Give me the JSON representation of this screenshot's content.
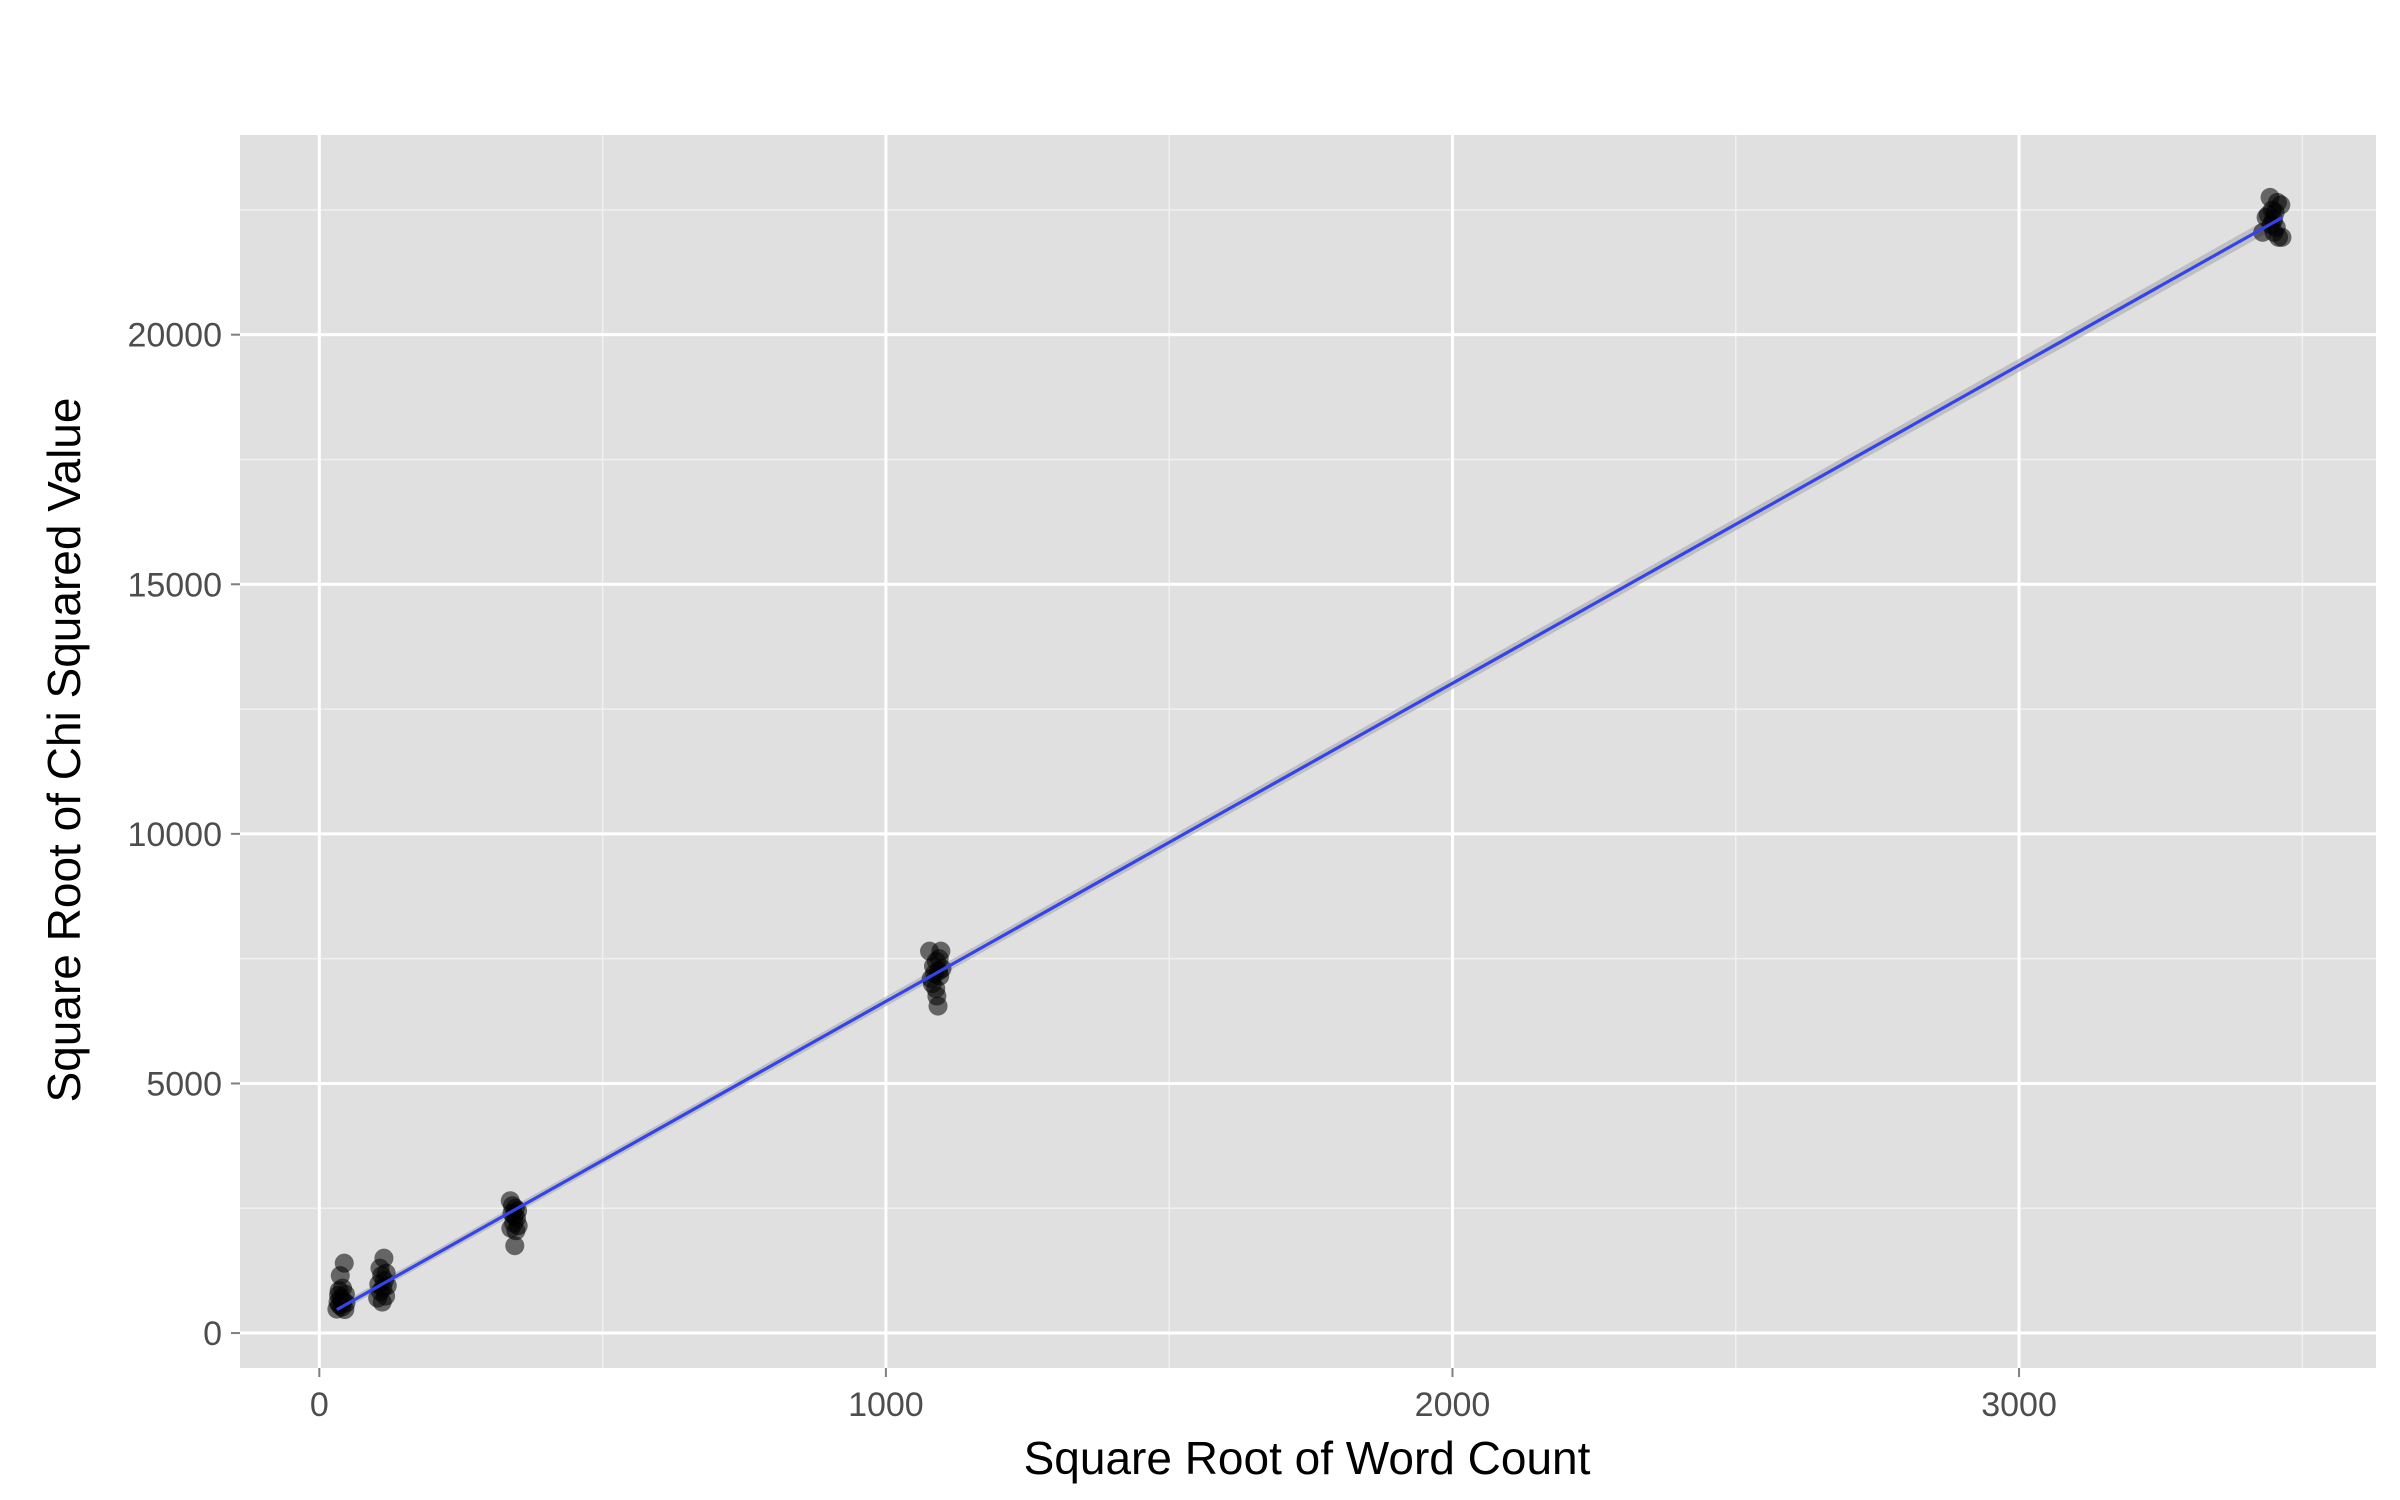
{
  "chart_data": {
    "type": "scatter",
    "title": "",
    "xlabel": "Square Root of Word Count",
    "ylabel": "Square Root of Chi Squared Value",
    "xlim": [
      -140,
      3630
    ],
    "ylim": [
      -700,
      24000
    ],
    "x_ticks": [
      0,
      1000,
      2000,
      3000
    ],
    "x_tick_labels": [
      "0",
      "1000",
      "2000",
      "3000"
    ],
    "y_ticks": [
      0,
      5000,
      10000,
      15000,
      20000
    ],
    "y_tick_labels": [
      "0",
      "5000",
      "10000",
      "15000",
      "20000"
    ],
    "grid": true,
    "legend": "none",
    "colors": {
      "panel_background": "#e0e0e0",
      "grid_major": "#ffffff",
      "grid_minor": "#f0f0f0",
      "points": "#000000",
      "fit_line": "#3344ee",
      "confidence_band": "#a8a8a8"
    },
    "series": [
      {
        "type": "scatter",
        "points": [
          {
            "x": 31,
            "y": 480
          },
          {
            "x": 33,
            "y": 620
          },
          {
            "x": 34,
            "y": 760
          },
          {
            "x": 35,
            "y": 850
          },
          {
            "x": 36,
            "y": 560
          },
          {
            "x": 37,
            "y": 1150
          },
          {
            "x": 38,
            "y": 700
          },
          {
            "x": 40,
            "y": 520
          },
          {
            "x": 41,
            "y": 900
          },
          {
            "x": 42,
            "y": 640
          },
          {
            "x": 44,
            "y": 1400
          },
          {
            "x": 45,
            "y": 470
          },
          {
            "x": 46,
            "y": 780
          },
          {
            "x": 47,
            "y": 600
          },
          {
            "x": 103,
            "y": 700
          },
          {
            "x": 105,
            "y": 980
          },
          {
            "x": 107,
            "y": 1300
          },
          {
            "x": 108,
            "y": 830
          },
          {
            "x": 110,
            "y": 1150
          },
          {
            "x": 111,
            "y": 620
          },
          {
            "x": 112,
            "y": 900
          },
          {
            "x": 114,
            "y": 1500
          },
          {
            "x": 115,
            "y": 1050
          },
          {
            "x": 117,
            "y": 740
          },
          {
            "x": 118,
            "y": 1200
          },
          {
            "x": 120,
            "y": 950
          },
          {
            "x": 337,
            "y": 2650
          },
          {
            "x": 338,
            "y": 2100
          },
          {
            "x": 340,
            "y": 2400
          },
          {
            "x": 341,
            "y": 2550
          },
          {
            "x": 343,
            "y": 2200
          },
          {
            "x": 344,
            "y": 2350
          },
          {
            "x": 345,
            "y": 1750
          },
          {
            "x": 346,
            "y": 2500
          },
          {
            "x": 347,
            "y": 2050
          },
          {
            "x": 348,
            "y": 2300
          },
          {
            "x": 350,
            "y": 2450
          },
          {
            "x": 351,
            "y": 2150
          },
          {
            "x": 1077,
            "y": 7650
          },
          {
            "x": 1080,
            "y": 7100
          },
          {
            "x": 1082,
            "y": 7000
          },
          {
            "x": 1084,
            "y": 7350
          },
          {
            "x": 1086,
            "y": 7200
          },
          {
            "x": 1088,
            "y": 6900
          },
          {
            "x": 1089,
            "y": 7450
          },
          {
            "x": 1090,
            "y": 6750
          },
          {
            "x": 1092,
            "y": 6550
          },
          {
            "x": 1093,
            "y": 7250
          },
          {
            "x": 1094,
            "y": 7500
          },
          {
            "x": 1095,
            "y": 7150
          },
          {
            "x": 1097,
            "y": 7650
          },
          {
            "x": 1099,
            "y": 7300
          },
          {
            "x": 3430,
            "y": 22050
          },
          {
            "x": 3436,
            "y": 22350
          },
          {
            "x": 3440,
            "y": 22400
          },
          {
            "x": 3443,
            "y": 22750
          },
          {
            "x": 3445,
            "y": 22200
          },
          {
            "x": 3447,
            "y": 22500
          },
          {
            "x": 3449,
            "y": 22300
          },
          {
            "x": 3450,
            "y": 22050
          },
          {
            "x": 3452,
            "y": 22450
          },
          {
            "x": 3454,
            "y": 22150
          },
          {
            "x": 3456,
            "y": 22650
          },
          {
            "x": 3458,
            "y": 21950
          },
          {
            "x": 3462,
            "y": 22600
          },
          {
            "x": 3464,
            "y": 21950
          }
        ]
      },
      {
        "type": "line",
        "points": [
          {
            "x": 31,
            "y": 470
          },
          {
            "x": 3465,
            "y": 22350
          }
        ]
      }
    ]
  }
}
